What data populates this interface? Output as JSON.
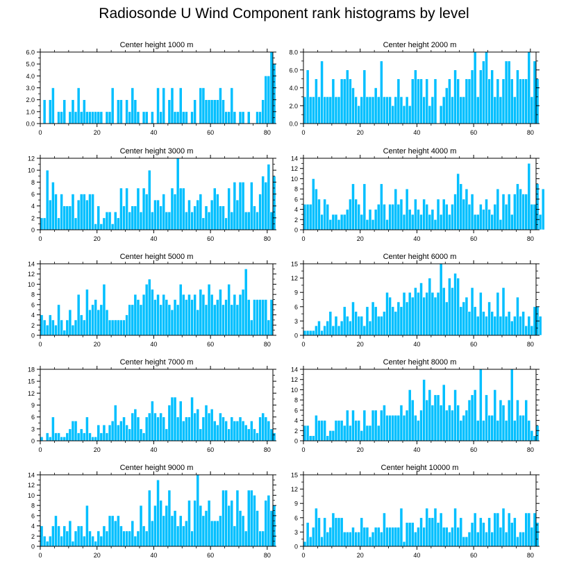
{
  "title": "Radiosonde U Wind Component rank histograms by level",
  "colors": {
    "bar": "#00bfff",
    "bar_edge": "#ffffff",
    "axis": "#000000"
  },
  "chart_data": [
    {
      "type": "bar",
      "title": "Center height 1000 m",
      "xlim": [
        0,
        82
      ],
      "ylim": [
        0,
        6
      ],
      "yticks": [
        0,
        1,
        2,
        3,
        4,
        5,
        6
      ],
      "ytick_labels": [
        "0.0",
        "1.0",
        "2.0",
        "3.0",
        "4.0",
        "5.0",
        "6.0"
      ],
      "xticks": [
        0,
        20,
        40,
        60,
        80
      ],
      "xtick_labels": [
        "0",
        "20",
        "40",
        "60",
        "80"
      ],
      "values": [
        0,
        2,
        0,
        2,
        3,
        0,
        1,
        1,
        2,
        0,
        1,
        2,
        1,
        3,
        1,
        2,
        1,
        1,
        1,
        1,
        1,
        1,
        0,
        1,
        1,
        3,
        0,
        2,
        2,
        0,
        2,
        1,
        3,
        2,
        1,
        0,
        1,
        1,
        0,
        1,
        0,
        3,
        1,
        3,
        0,
        2,
        3,
        1,
        1,
        3,
        1,
        1,
        0,
        1,
        2,
        0,
        3,
        3,
        2,
        2,
        2,
        2,
        2,
        3,
        2,
        1,
        1,
        3,
        1,
        0,
        1,
        1,
        0,
        1,
        0,
        0,
        1,
        1,
        2,
        4,
        4,
        6,
        5
      ]
    },
    {
      "type": "bar",
      "title": "Center height 2000 m",
      "xlim": [
        0,
        82
      ],
      "ylim": [
        0,
        8
      ],
      "yticks": [
        0,
        2,
        4,
        6,
        8
      ],
      "ytick_labels": [
        "0.0",
        "2.0",
        "4.0",
        "6.0",
        "8.0"
      ],
      "xticks": [
        0,
        20,
        40,
        60,
        80
      ],
      "xtick_labels": [
        "0",
        "20",
        "40",
        "60",
        "80"
      ],
      "values": [
        3,
        6,
        3,
        3,
        5,
        3,
        7,
        3,
        3,
        3,
        5,
        3,
        3,
        5,
        5,
        6,
        5,
        4,
        3,
        2,
        3,
        6,
        3,
        3,
        3,
        4,
        3,
        7,
        3,
        3,
        3,
        2,
        3,
        5,
        3,
        2,
        3,
        2,
        5,
        6,
        5,
        5,
        3,
        5,
        2,
        3,
        5,
        0,
        2,
        3,
        4,
        5,
        3,
        6,
        5,
        3,
        3,
        5,
        5,
        6,
        8,
        3,
        6,
        7,
        8,
        5,
        6,
        3,
        5,
        3,
        5,
        7,
        7,
        5,
        3,
        6,
        5,
        5,
        5,
        8,
        3,
        7,
        5
      ]
    },
    {
      "type": "bar",
      "title": "Center height 3000 m",
      "xlim": [
        0,
        82
      ],
      "ylim": [
        0,
        12
      ],
      "yticks": [
        0,
        2,
        4,
        6,
        8,
        10,
        12
      ],
      "ytick_labels": [
        "0",
        "2",
        "4",
        "6",
        "8",
        "10",
        "12"
      ],
      "xticks": [
        0,
        20,
        40,
        60,
        80
      ],
      "xtick_labels": [
        "0",
        "20",
        "40",
        "60",
        "80"
      ],
      "values": [
        2,
        2,
        10,
        5,
        8,
        6,
        2,
        6,
        4,
        4,
        4,
        6,
        2,
        5,
        6,
        6,
        5,
        6,
        6,
        1,
        4,
        1,
        2,
        3,
        3,
        1,
        3,
        2,
        7,
        4,
        7,
        3,
        4,
        4,
        7,
        3,
        7,
        6,
        10,
        3,
        5,
        5,
        4,
        6,
        3,
        3,
        7,
        6,
        12,
        7,
        7,
        3,
        5,
        3,
        4,
        5,
        6,
        2,
        4,
        3,
        5,
        7,
        6,
        4,
        4,
        2,
        7,
        3,
        8,
        5,
        8,
        8,
        3,
        3,
        8,
        4,
        3,
        6,
        9,
        8,
        11,
        3,
        9
      ]
    },
    {
      "type": "bar",
      "title": "Center height 4000 m",
      "xlim": [
        0,
        82
      ],
      "ylim": [
        0,
        14
      ],
      "yticks": [
        0,
        2,
        4,
        6,
        8,
        10,
        12,
        14
      ],
      "ytick_labels": [
        "0",
        "2",
        "4",
        "6",
        "8",
        "10",
        "12",
        "14"
      ],
      "xticks": [
        0,
        20,
        40,
        60,
        80
      ],
      "xtick_labels": [
        "0",
        "20",
        "40",
        "60",
        "80"
      ],
      "values": [
        5,
        5,
        5,
        10,
        8,
        6,
        3,
        6,
        5,
        2,
        3,
        3,
        2,
        3,
        3,
        4,
        6,
        9,
        6,
        5,
        3,
        9,
        2,
        4,
        2,
        4,
        5,
        9,
        5,
        2,
        5,
        5,
        8,
        5,
        6,
        3,
        8,
        4,
        3,
        6,
        4,
        3,
        6,
        5,
        3,
        4,
        2,
        6,
        3,
        6,
        5,
        3,
        5,
        7,
        11,
        9,
        6,
        8,
        5,
        7,
        3,
        3,
        5,
        4,
        6,
        4,
        3,
        5,
        8,
        2,
        7,
        5,
        7,
        3,
        7,
        9,
        8,
        7,
        7,
        13,
        5,
        5,
        9,
        3,
        8
      ]
    },
    {
      "type": "bar",
      "title": "Center height 5000 m",
      "xlim": [
        0,
        82
      ],
      "ylim": [
        0,
        14
      ],
      "yticks": [
        0,
        2,
        4,
        6,
        8,
        10,
        12,
        14
      ],
      "ytick_labels": [
        "0",
        "2",
        "4",
        "6",
        "8",
        "10",
        "12",
        "14"
      ],
      "xticks": [
        0,
        20,
        40,
        60,
        80
      ],
      "xtick_labels": [
        "0",
        "20",
        "40",
        "60",
        "80"
      ],
      "values": [
        4,
        3,
        2,
        4,
        3,
        2,
        6,
        3,
        1,
        3,
        5,
        2,
        3,
        8,
        4,
        3,
        9,
        5,
        6,
        7,
        5,
        6,
        10,
        5,
        3,
        3,
        3,
        3,
        3,
        3,
        4,
        6,
        6,
        8,
        7,
        6,
        8,
        10,
        11,
        9,
        7,
        8,
        6,
        8,
        7,
        6,
        5,
        7,
        6,
        10,
        8,
        7,
        8,
        7,
        8,
        5,
        9,
        8,
        6,
        10,
        8,
        6,
        7,
        9,
        6,
        7,
        10,
        6,
        8,
        6,
        8,
        9,
        13,
        7,
        3,
        7,
        7,
        7,
        7,
        7,
        3,
        7
      ]
    },
    {
      "type": "bar",
      "title": "Center height 6000 m",
      "xlim": [
        0,
        82
      ],
      "ylim": [
        0,
        15
      ],
      "yticks": [
        0,
        3,
        6,
        9,
        12,
        15
      ],
      "ytick_labels": [
        "0",
        "3",
        "6",
        "9",
        "12",
        "15"
      ],
      "xticks": [
        0,
        20,
        40,
        60,
        80
      ],
      "xtick_labels": [
        "0",
        "20",
        "40",
        "60",
        "80"
      ],
      "values": [
        1,
        1,
        1,
        1,
        2,
        3,
        1,
        2,
        3,
        5,
        2,
        4,
        2,
        3,
        6,
        4,
        3,
        7,
        5,
        4,
        4,
        2,
        6,
        3,
        7,
        6,
        4,
        4,
        5,
        9,
        8,
        6,
        5,
        7,
        6,
        9,
        7,
        9,
        8,
        10,
        9,
        11,
        8,
        9,
        12,
        9,
        8,
        9,
        15,
        10,
        7,
        12,
        10,
        13,
        12,
        6,
        7,
        8,
        5,
        10,
        6,
        4,
        9,
        5,
        4,
        7,
        5,
        4,
        9,
        4,
        10,
        4,
        5,
        3,
        4,
        8,
        4,
        5,
        2,
        4,
        2,
        6,
        6,
        4
      ]
    },
    {
      "type": "bar",
      "title": "Center height 7000 m",
      "xlim": [
        0,
        82
      ],
      "ylim": [
        0,
        18
      ],
      "yticks": [
        0,
        3,
        6,
        9,
        12,
        15,
        18
      ],
      "ytick_labels": [
        "0",
        "3",
        "6",
        "9",
        "12",
        "15",
        "18"
      ],
      "xticks": [
        0,
        20,
        40,
        60,
        80
      ],
      "xtick_labels": [
        "0",
        "20",
        "40",
        "60",
        "80"
      ],
      "values": [
        1,
        0,
        2,
        1,
        6,
        2,
        2,
        1,
        1,
        2,
        3,
        5,
        5,
        2,
        3,
        2,
        6,
        2,
        1,
        1,
        4,
        2,
        4,
        2,
        4,
        5,
        9,
        4,
        5,
        6,
        4,
        3,
        7,
        8,
        6,
        3,
        2,
        6,
        7,
        10,
        7,
        6,
        7,
        6,
        3,
        9,
        11,
        11,
        6,
        10,
        5,
        6,
        6,
        11,
        7,
        8,
        3,
        6,
        9,
        7,
        8,
        5,
        4,
        7,
        6,
        5,
        3,
        6,
        5,
        5,
        6,
        5,
        4,
        3,
        5,
        3,
        2,
        6,
        7,
        6,
        5,
        3,
        2
      ]
    },
    {
      "type": "bar",
      "title": "Center height 8000 m",
      "xlim": [
        0,
        82
      ],
      "ylim": [
        0,
        14
      ],
      "yticks": [
        0,
        2,
        4,
        6,
        8,
        10,
        12,
        14
      ],
      "ytick_labels": [
        "0",
        "2",
        "4",
        "6",
        "8",
        "10",
        "12",
        "14"
      ],
      "xticks": [
        0,
        20,
        40,
        60,
        80
      ],
      "xtick_labels": [
        "0",
        "20",
        "40",
        "60",
        "80"
      ],
      "values": [
        3,
        3,
        1,
        1,
        5,
        4,
        4,
        4,
        1,
        2,
        2,
        4,
        4,
        4,
        3,
        6,
        3,
        6,
        4,
        4,
        2,
        6,
        3,
        3,
        6,
        6,
        3,
        6,
        7,
        5,
        5,
        5,
        5,
        5,
        7,
        5,
        6,
        10,
        8,
        5,
        4,
        6,
        12,
        8,
        10,
        7,
        9,
        9,
        7,
        11,
        6,
        7,
        6,
        10,
        7,
        4,
        5,
        6,
        8,
        9,
        10,
        4,
        14,
        4,
        9,
        5,
        5,
        10,
        4,
        8,
        7,
        4,
        8,
        14,
        4,
        8,
        5,
        5,
        8,
        4,
        2,
        1,
        3
      ]
    },
    {
      "type": "bar",
      "title": "Center height 9000 m",
      "xlim": [
        0,
        82
      ],
      "ylim": [
        0,
        14
      ],
      "yticks": [
        0,
        2,
        4,
        6,
        8,
        10,
        12,
        14
      ],
      "ytick_labels": [
        "0",
        "2",
        "4",
        "6",
        "8",
        "10",
        "12",
        "14"
      ],
      "xticks": [
        0,
        20,
        40,
        60,
        80
      ],
      "xtick_labels": [
        "0",
        "20",
        "40",
        "60",
        "80"
      ],
      "values": [
        4,
        2,
        1,
        2,
        4,
        6,
        4,
        2,
        4,
        3,
        5,
        1,
        3,
        4,
        4,
        2,
        8,
        3,
        2,
        1,
        3,
        2,
        4,
        3,
        6,
        6,
        5,
        6,
        4,
        3,
        3,
        3,
        5,
        2,
        3,
        8,
        4,
        3,
        11,
        5,
        8,
        13,
        9,
        6,
        8,
        11,
        6,
        7,
        4,
        6,
        4,
        5,
        9,
        3,
        9,
        14,
        8,
        6,
        7,
        9,
        5,
        5,
        5,
        6,
        11,
        11,
        8,
        9,
        4,
        11,
        7,
        6,
        3,
        11,
        11,
        10,
        7,
        3,
        3,
        9,
        10,
        7,
        8
      ]
    },
    {
      "type": "bar",
      "title": "Center height 10000 m",
      "xlim": [
        0,
        82
      ],
      "ylim": [
        0,
        15
      ],
      "yticks": [
        0,
        3,
        6,
        9,
        12,
        15
      ],
      "ytick_labels": [
        "0",
        "3",
        "6",
        "9",
        "12",
        "15"
      ],
      "xticks": [
        0,
        20,
        40,
        60,
        80
      ],
      "xtick_labels": [
        "0",
        "20",
        "40",
        "60",
        "80"
      ],
      "values": [
        1,
        5,
        2,
        4,
        8,
        6,
        2,
        6,
        3,
        4,
        7,
        6,
        6,
        6,
        3,
        3,
        3,
        4,
        3,
        3,
        6,
        4,
        4,
        2,
        3,
        4,
        4,
        3,
        7,
        4,
        4,
        4,
        4,
        4,
        8,
        1,
        5,
        5,
        5,
        3,
        4,
        6,
        4,
        8,
        6,
        6,
        8,
        5,
        7,
        4,
        4,
        3,
        4,
        8,
        4,
        6,
        2,
        2,
        3,
        5,
        7,
        3,
        6,
        5,
        3,
        6,
        3,
        7,
        7,
        4,
        8,
        3,
        7,
        5,
        6,
        2,
        3,
        3,
        7,
        7,
        4,
        7,
        5
      ]
    }
  ]
}
